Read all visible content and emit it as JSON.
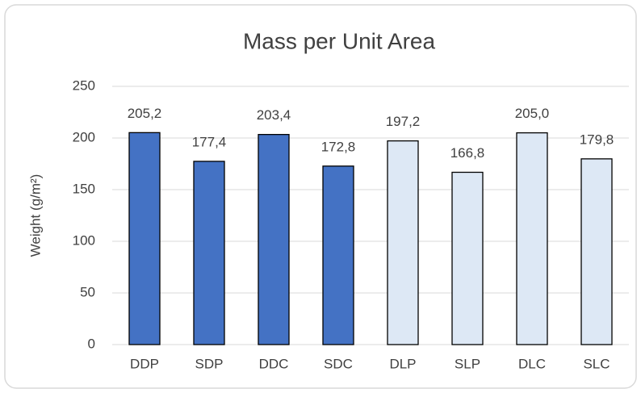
{
  "chart_data": {
    "type": "bar",
    "title": "Mass per Unit Area",
    "y_label": "Weight (g/m²)",
    "categories": [
      "DDP",
      "SDP",
      "DDC",
      "SDC",
      "DLP",
      "SLP",
      "DLC",
      "SLC"
    ],
    "values": [
      205.2,
      177.4,
      203.4,
      172.8,
      197.2,
      166.8,
      205.0,
      179.8
    ],
    "value_labels": [
      "205,2",
      "177,4",
      "203,4",
      "172,8",
      "197,2",
      "166,8",
      "205,0",
      "179,8"
    ],
    "colors": [
      "#4472c4",
      "#4472c4",
      "#4472c4",
      "#4472c4",
      "#dde8f5",
      "#dde8f5",
      "#dde8f5",
      "#dde8f5"
    ],
    "ylim": [
      0,
      250
    ],
    "yticks": [
      0,
      50,
      100,
      150,
      200,
      250
    ],
    "grid": true
  }
}
